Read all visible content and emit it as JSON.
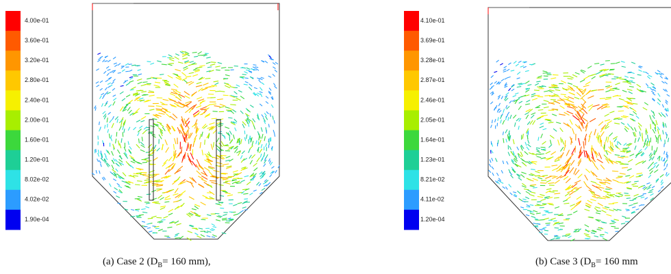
{
  "panels": [
    {
      "colorbar": {
        "labels": [
          "4.00e-01",
          "3.60e-01",
          "3.20e-01",
          "2.80e-01",
          "2.40e-01",
          "2.00e-01",
          "1.60e-01",
          "1.20e-01",
          "8.02e-02",
          "4.02e-02",
          "1.90e-04"
        ]
      },
      "caption": {
        "prefix": "(a) Case 2 (D",
        "subscript": "B",
        "suffix": "= 160 mm),"
      }
    },
    {
      "colorbar": {
        "labels": [
          "4.10e-01",
          "3.69e-01",
          "3.28e-01",
          "2.87e-01",
          "2.46e-01",
          "2.05e-01",
          "1.64e-01",
          "1.23e-01",
          "8.21e-02",
          "4.11e-02",
          "1.20e-04"
        ]
      },
      "caption": {
        "prefix": "(b) Case 3 (D",
        "subscript": "B",
        "suffix": "= 160 mm"
      }
    }
  ]
}
